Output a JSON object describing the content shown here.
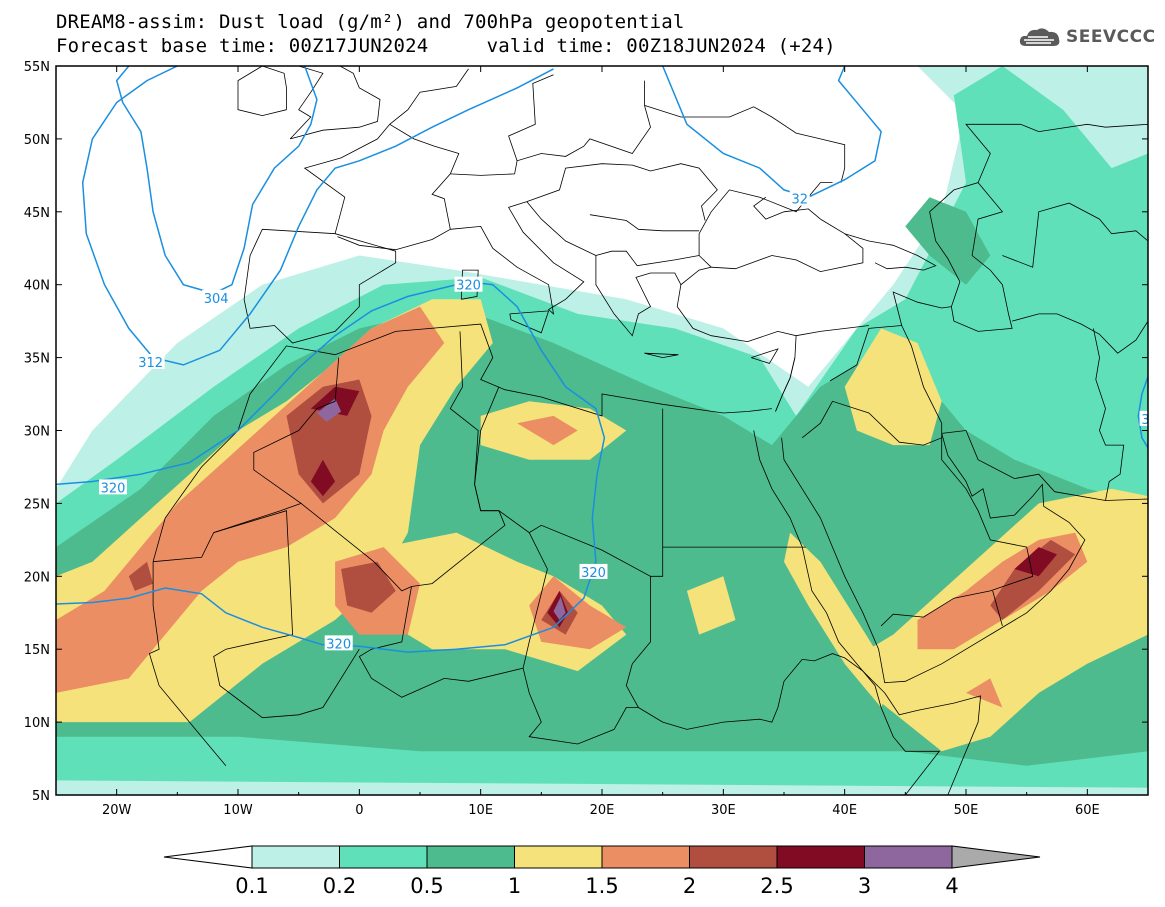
{
  "title_line1": "DREAM8-assim: Dust load (g/m²) and 700hPa geopotential",
  "title_line2": "Forecast base time: 00Z17JUN2024     valid time: 00Z18JUN2024 (+24)",
  "logo_text": "SEEVCCC",
  "map": {
    "lon_range": [
      -25,
      65
    ],
    "lat_range": [
      5,
      55
    ],
    "lat_ticks": [
      {
        "lat": 55,
        "label": "55N"
      },
      {
        "lat": 50,
        "label": "50N"
      },
      {
        "lat": 45,
        "label": "45N"
      },
      {
        "lat": 40,
        "label": "40N"
      },
      {
        "lat": 35,
        "label": "35N"
      },
      {
        "lat": 30,
        "label": "30N"
      },
      {
        "lat": 25,
        "label": "25N"
      },
      {
        "lat": 20,
        "label": "20N"
      },
      {
        "lat": 15,
        "label": "15N"
      },
      {
        "lat": 10,
        "label": "10N"
      },
      {
        "lat": 5,
        "label": "5N"
      }
    ],
    "lon_ticks": [
      {
        "lon": -20,
        "label": "20W"
      },
      {
        "lon": -10,
        "label": "10W"
      },
      {
        "lon": 0,
        "label": "0"
      },
      {
        "lon": 10,
        "label": "10E"
      },
      {
        "lon": 20,
        "label": "20E"
      },
      {
        "lon": 30,
        "label": "30E"
      },
      {
        "lon": 40,
        "label": "40E"
      },
      {
        "lon": 50,
        "label": "50E"
      },
      {
        "lon": 60,
        "label": "60E"
      }
    ],
    "contour_labels": [
      {
        "text": "304",
        "lon": -11.8,
        "lat": 39.1
      },
      {
        "text": "312",
        "lon": -17.2,
        "lat": 34.7
      },
      {
        "text": "320",
        "lon": -20.3,
        "lat": 26.1
      },
      {
        "text": "320",
        "lon": -1.7,
        "lat": 15.4
      },
      {
        "text": "320",
        "lon": 19.3,
        "lat": 20.3
      },
      {
        "text": "320",
        "lon": 9.0,
        "lat": 40.0
      },
      {
        "text": "32",
        "lon": 36.3,
        "lat": 45.9
      },
      {
        "text": "3",
        "lon": 64.8,
        "lat": 30.8
      }
    ]
  },
  "colorbar": {
    "levels": [
      "0.1",
      "0.2",
      "0.5",
      "1",
      "1.5",
      "2",
      "2.5",
      "3",
      "4"
    ],
    "colors": [
      "#bdf0e6",
      "#5fe0b9",
      "#4dbb8d",
      "#f5e27a",
      "#ec8e64",
      "#b04e3f",
      "#820b24",
      "#8d679e"
    ],
    "under_color": "#ffffff",
    "over_color": "#aaaaaa"
  },
  "colors": {
    "land": "#ffffff",
    "border": "#000000",
    "contour": "#1a8fe0"
  }
}
